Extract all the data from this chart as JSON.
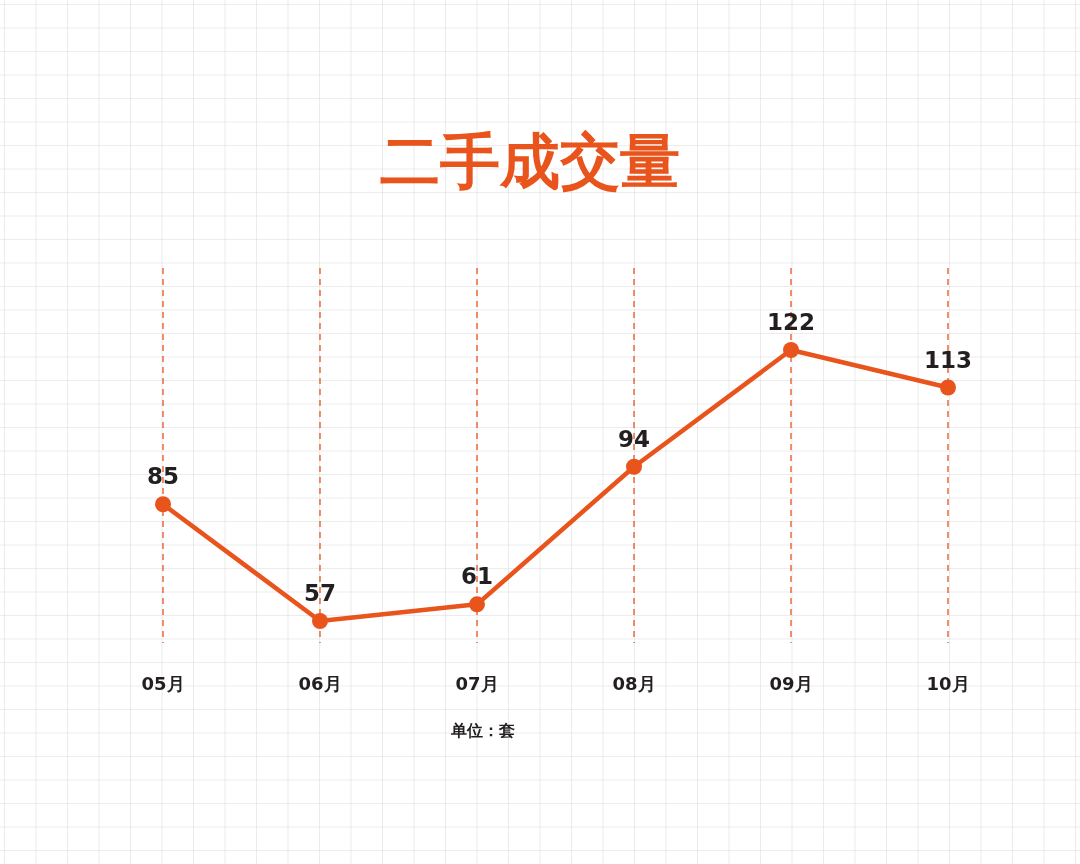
{
  "chart_data": {
    "type": "line",
    "title": "二手成交量",
    "categories": [
      "05月",
      "06月",
      "07月",
      "08月",
      "09月",
      "10月"
    ],
    "values": [
      85,
      57,
      61,
      94,
      122,
      113
    ],
    "color": "#e8541c",
    "data_labels": true,
    "marker": "circle",
    "line_style": "solid",
    "grid": "x",
    "annotations": [
      "单位：套"
    ]
  }
}
